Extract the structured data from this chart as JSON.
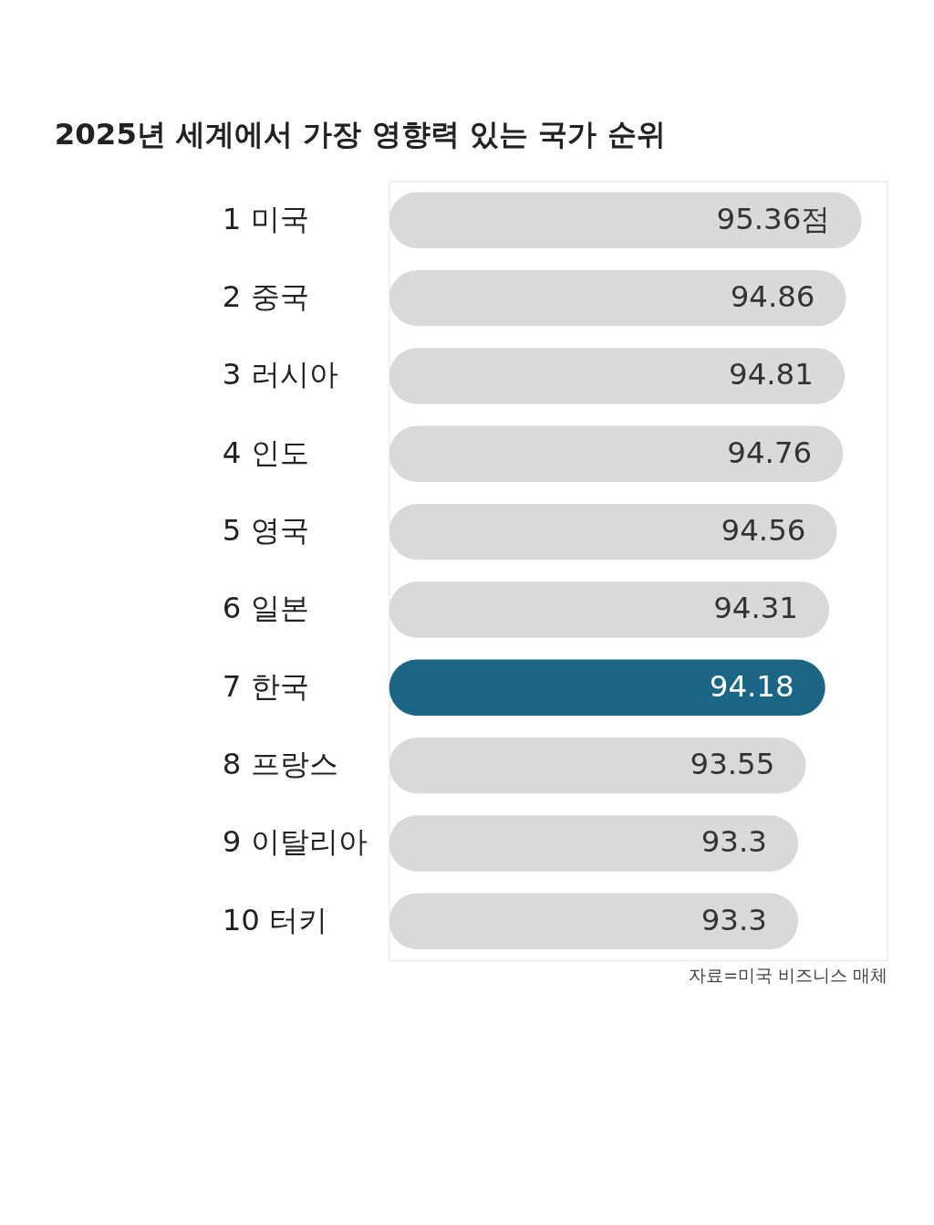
{
  "chart_data": {
    "type": "bar",
    "orientation": "horizontal",
    "title": "2025년 세계에서 가장 영향력 있는 국가 순위",
    "categories": [
      "1 미국",
      "2 중국",
      "3 러시아",
      "4 인도",
      "5 영국",
      "6 일본",
      "7 한국",
      "8 프랑스",
      "9 이탈리아",
      "10 터키"
    ],
    "values": [
      95.36,
      94.86,
      94.81,
      94.76,
      94.56,
      94.31,
      94.18,
      93.55,
      93.3,
      93.3
    ],
    "value_labels": [
      "95.36점",
      "94.86",
      "94.81",
      "94.76",
      "94.56",
      "94.31",
      "94.18",
      "93.55",
      "93.3",
      "93.3"
    ],
    "colors": [
      "#d9d9d9",
      "#d9d9d9",
      "#d9d9d9",
      "#d9d9d9",
      "#d9d9d9",
      "#d9d9d9",
      "#1b6685",
      "#d9d9d9",
      "#d9d9d9",
      "#d9d9d9"
    ],
    "xlim": [
      80,
      96.2
    ],
    "tick_labels": "y",
    "annotations": [
      "자료=미국 비즈니스 매체"
    ]
  }
}
